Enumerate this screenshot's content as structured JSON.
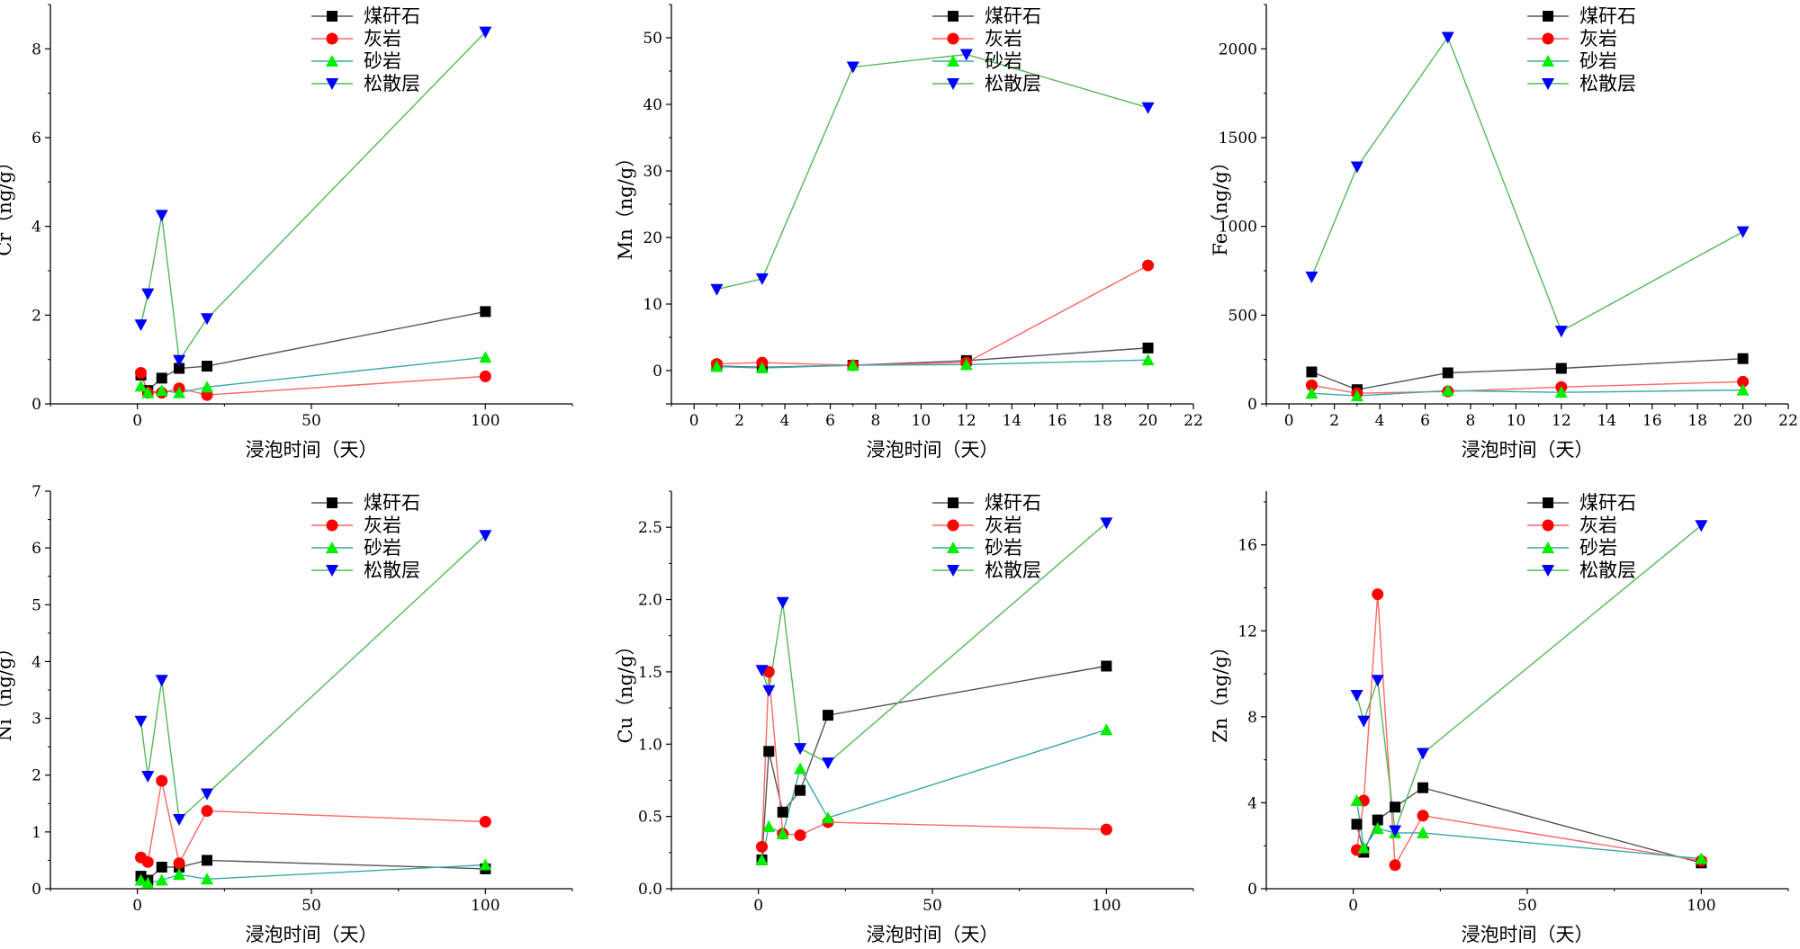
{
  "series_names": [
    "煤矸石",
    "灰岩",
    "砂岩",
    "松散层"
  ],
  "series_colors": [
    "#000000",
    "#ff0000",
    "#00ee00",
    "#0000ff"
  ],
  "line_colors": [
    "#555555",
    "#ff6666",
    "#3aa8a8",
    "#55b858"
  ],
  "marker_shapes": [
    "square",
    "circle",
    "triangle-up",
    "triangle-down"
  ],
  "chart_data": [
    {
      "type": "line",
      "ylabel": "Cr（ng/g）",
      "xlabel": "浸泡时间（天）",
      "xlim": [
        -25,
        125
      ],
      "ylim": [
        0,
        9
      ],
      "xticks": [
        0,
        50,
        100
      ],
      "xtick_labels": [
        "0",
        "50",
        "100"
      ],
      "yticks": [
        0,
        2,
        4,
        6,
        8
      ],
      "ytick_labels": [
        "0",
        "2",
        "4",
        "6",
        "8"
      ],
      "series": [
        {
          "name": "煤矸石",
          "x": [
            1,
            3,
            7,
            12,
            20,
            100
          ],
          "y": [
            0.65,
            0.3,
            0.58,
            0.8,
            0.85,
            2.08
          ]
        },
        {
          "name": "灰岩",
          "x": [
            1,
            3,
            7,
            12,
            20,
            100
          ],
          "y": [
            0.7,
            0.25,
            0.25,
            0.35,
            0.2,
            0.62
          ]
        },
        {
          "name": "砂岩",
          "x": [
            1,
            3,
            7,
            12,
            20,
            100
          ],
          "y": [
            0.4,
            0.25,
            0.3,
            0.25,
            0.38,
            1.05
          ]
        },
        {
          "name": "松散层",
          "x": [
            1,
            3,
            7,
            12,
            20,
            100
          ],
          "y": [
            1.78,
            2.48,
            4.25,
            0.98,
            1.92,
            8.38
          ]
        }
      ]
    },
    {
      "type": "line",
      "ylabel": "Mn（ng/g）",
      "xlabel": "浸泡时间（天）",
      "xlim": [
        -1,
        22
      ],
      "ylim": [
        -5,
        55
      ],
      "xticks": [
        0,
        2,
        4,
        6,
        8,
        10,
        12,
        14,
        16,
        18,
        20,
        22
      ],
      "xtick_labels": [
        "0",
        "2",
        "4",
        "6",
        "8",
        "10",
        "12",
        "14",
        "16",
        "18",
        "20",
        "22"
      ],
      "yticks": [
        0,
        10,
        20,
        30,
        40,
        50
      ],
      "ytick_labels": [
        "0",
        "10",
        "20",
        "30",
        "40",
        "50"
      ],
      "series": [
        {
          "name": "煤矸石",
          "x": [
            1,
            3,
            7,
            12,
            20
          ],
          "y": [
            0.7,
            0.5,
            0.8,
            1.5,
            3.4
          ]
        },
        {
          "name": "灰岩",
          "x": [
            1,
            3,
            7,
            12,
            20
          ],
          "y": [
            1.0,
            1.2,
            0.8,
            1.2,
            15.8
          ]
        },
        {
          "name": "砂岩",
          "x": [
            1,
            3,
            7,
            12,
            20
          ],
          "y": [
            0.6,
            0.4,
            0.8,
            0.9,
            1.6
          ]
        },
        {
          "name": "松散层",
          "x": [
            1,
            3,
            7,
            12,
            20
          ],
          "y": [
            12.2,
            13.8,
            45.6,
            47.5,
            39.5
          ]
        }
      ]
    },
    {
      "type": "line",
      "ylabel": "Fe（ng/g）",
      "xlabel": "浸泡时间（天）",
      "xlim": [
        -1,
        22
      ],
      "ylim": [
        0,
        2250
      ],
      "xticks": [
        0,
        2,
        4,
        6,
        8,
        10,
        12,
        14,
        16,
        18,
        20,
        22
      ],
      "xtick_labels": [
        "0",
        "2",
        "4",
        "6",
        "8",
        "10",
        "12",
        "14",
        "16",
        "18",
        "20",
        "22"
      ],
      "yticks": [
        0,
        500,
        1000,
        1500,
        2000
      ],
      "ytick_labels": [
        "0",
        "500",
        "1000",
        "1500",
        "2000"
      ],
      "series": [
        {
          "name": "煤矸石",
          "x": [
            1,
            3,
            7,
            12,
            20
          ],
          "y": [
            180,
            80,
            175,
            200,
            255
          ]
        },
        {
          "name": "灰岩",
          "x": [
            1,
            3,
            7,
            12,
            20
          ],
          "y": [
            105,
            60,
            70,
            95,
            125
          ]
        },
        {
          "name": "砂岩",
          "x": [
            1,
            3,
            7,
            12,
            20
          ],
          "y": [
            60,
            45,
            75,
            65,
            78
          ]
        },
        {
          "name": "松散层",
          "x": [
            1,
            3,
            7,
            12,
            20
          ],
          "y": [
            715,
            1335,
            2065,
            410,
            970
          ]
        }
      ]
    },
    {
      "type": "line",
      "ylabel": "Ni（ng/g）",
      "xlabel": "浸泡时间（天）",
      "xlim": [
        -25,
        125
      ],
      "ylim": [
        0,
        7
      ],
      "xticks": [
        0,
        50,
        100
      ],
      "xtick_labels": [
        "0",
        "50",
        "100"
      ],
      "yticks": [
        0,
        1,
        2,
        3,
        4,
        5,
        6,
        7
      ],
      "ytick_labels": [
        "0",
        "1",
        "2",
        "3",
        "4",
        "5",
        "6",
        "7"
      ],
      "series": [
        {
          "name": "煤矸石",
          "x": [
            1,
            3,
            7,
            12,
            20,
            100
          ],
          "y": [
            0.22,
            0.15,
            0.38,
            0.38,
            0.5,
            0.35
          ]
        },
        {
          "name": "灰岩",
          "x": [
            1,
            3,
            7,
            12,
            20,
            100
          ],
          "y": [
            0.55,
            0.47,
            1.9,
            0.45,
            1.37,
            1.18
          ]
        },
        {
          "name": "砂岩",
          "x": [
            1,
            3,
            7,
            12,
            20,
            100
          ],
          "y": [
            0.15,
            0.1,
            0.15,
            0.25,
            0.17,
            0.42
          ]
        },
        {
          "name": "松散层",
          "x": [
            1,
            3,
            7,
            12,
            20,
            100
          ],
          "y": [
            2.95,
            1.98,
            3.67,
            1.22,
            1.67,
            6.22
          ]
        }
      ]
    },
    {
      "type": "line",
      "ylabel": "Cu（ng/g）",
      "xlabel": "浸泡时间（天）",
      "xlim": [
        -25,
        125
      ],
      "ylim": [
        0,
        2.75
      ],
      "xticks": [
        0,
        50,
        100
      ],
      "xtick_labels": [
        "0",
        "50",
        "100"
      ],
      "yticks": [
        0,
        0.5,
        1.0,
        1.5,
        2.0,
        2.5
      ],
      "ytick_labels": [
        "0.0",
        "0.5",
        "1.0",
        "1.5",
        "2.0",
        "2.5"
      ],
      "series": [
        {
          "name": "煤矸石",
          "x": [
            1,
            3,
            7,
            12,
            20,
            100
          ],
          "y": [
            0.2,
            0.95,
            0.53,
            0.68,
            1.2,
            1.54
          ]
        },
        {
          "name": "灰岩",
          "x": [
            1,
            3,
            7,
            12,
            20,
            100
          ],
          "y": [
            0.29,
            1.5,
            0.38,
            0.37,
            0.46,
            0.41
          ]
        },
        {
          "name": "砂岩",
          "x": [
            1,
            3,
            7,
            12,
            20,
            100
          ],
          "y": [
            0.2,
            0.43,
            0.38,
            0.83,
            0.49,
            1.1
          ]
        },
        {
          "name": "松散层",
          "x": [
            1,
            3,
            7,
            12,
            20,
            100
          ],
          "y": [
            1.51,
            1.37,
            1.98,
            0.97,
            0.87,
            2.53
          ]
        }
      ]
    },
    {
      "type": "line",
      "ylabel": "Zn（ng/g）",
      "xlabel": "浸泡时间（天）",
      "xlim": [
        -25,
        125
      ],
      "ylim": [
        0,
        18.5
      ],
      "xticks": [
        0,
        50,
        100
      ],
      "xtick_labels": [
        "0",
        "50",
        "100"
      ],
      "yticks": [
        0,
        4,
        8,
        12,
        16
      ],
      "ytick_labels": [
        "0",
        "4",
        "8",
        "12",
        "16"
      ],
      "series": [
        {
          "name": "煤矸石",
          "x": [
            1,
            3,
            7,
            12,
            20,
            100
          ],
          "y": [
            3.0,
            1.7,
            3.2,
            3.8,
            4.7,
            1.2
          ]
        },
        {
          "name": "灰岩",
          "x": [
            1,
            3,
            7,
            12,
            20,
            100
          ],
          "y": [
            1.8,
            4.1,
            13.7,
            1.1,
            3.4,
            1.3
          ]
        },
        {
          "name": "砂岩",
          "x": [
            1,
            3,
            7,
            12,
            20,
            100
          ],
          "y": [
            4.1,
            1.9,
            2.8,
            2.6,
            2.6,
            1.4
          ]
        },
        {
          "name": "松散层",
          "x": [
            1,
            3,
            7,
            12,
            20,
            100
          ],
          "y": [
            9.0,
            7.8,
            9.7,
            2.7,
            6.3,
            16.9
          ]
        }
      ]
    }
  ]
}
